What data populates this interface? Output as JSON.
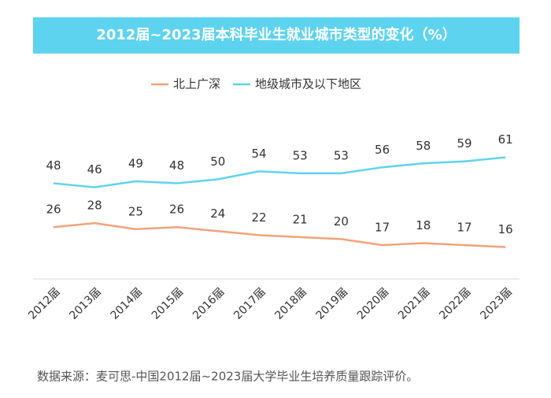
{
  "chart_data": {
    "type": "line",
    "title": "2012届~2023届本科毕业生就业城市类型的变化（%）",
    "categories": [
      "2012届",
      "2013届",
      "2014届",
      "2015届",
      "2016届",
      "2017届",
      "2018届",
      "2019届",
      "2020届",
      "2021届",
      "2022届",
      "2023届"
    ],
    "series": [
      {
        "name": "北上广深",
        "color": "#f2a27a",
        "values": [
          26,
          28,
          25,
          26,
          24,
          22,
          21,
          20,
          17,
          18,
          17,
          16
        ]
      },
      {
        "name": "地级城市及以下地区",
        "color": "#5fd3ee",
        "values": [
          48,
          46,
          49,
          48,
          50,
          54,
          53,
          53,
          56,
          58,
          59,
          61
        ]
      }
    ],
    "source": "数据来源：麦可思-中国2012届~2023届大学毕业生培养质量跟踪评价。"
  }
}
